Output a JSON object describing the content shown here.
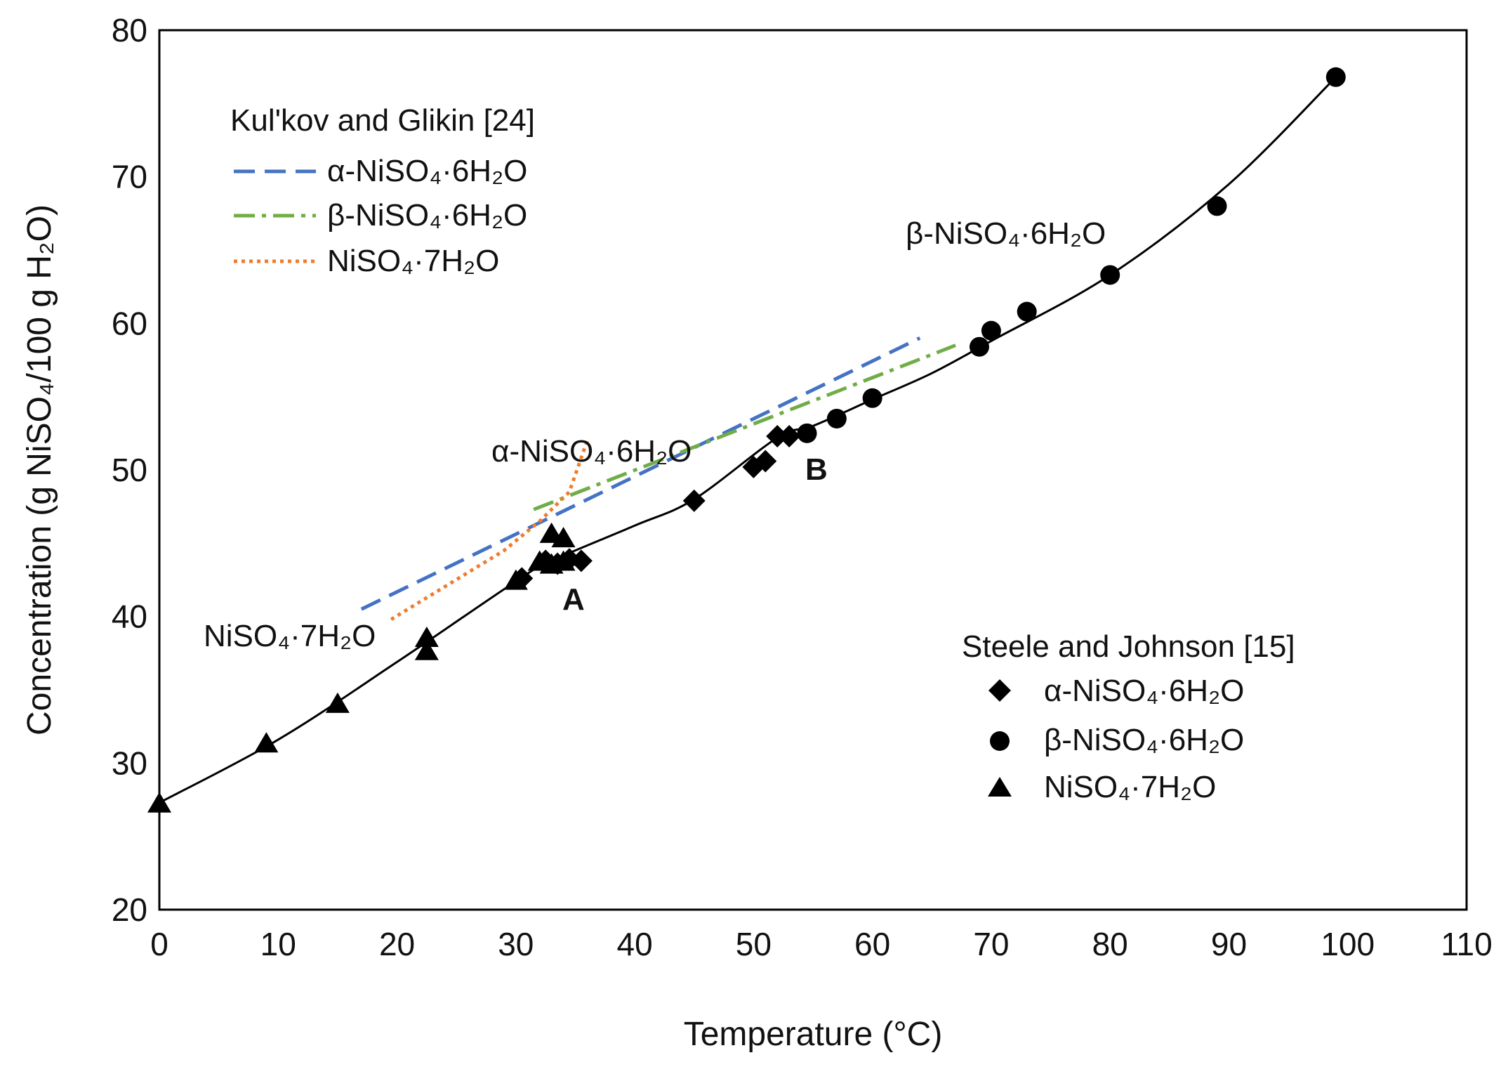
{
  "chart_data": {
    "type": "scatter",
    "xlabel": "Temperature (°C)",
    "ylabel": "Concentration (g NiSO₄/100 g H₂O)",
    "xlim": [
      0,
      110
    ],
    "ylim": [
      20,
      80
    ],
    "xticks": [
      "0",
      "10",
      "20",
      "30",
      "40",
      "50",
      "60",
      "70",
      "80",
      "90",
      "100",
      "110"
    ],
    "yticks": [
      "20",
      "30",
      "40",
      "50",
      "60",
      "70",
      "80"
    ],
    "grid": false,
    "legend_kulkov": {
      "title": "Kul'kov and Glikin [24]",
      "entries": [
        "α-NiSO₄·6H₂O",
        "β-NiSO₄·6H₂O",
        "NiSO₄·7H₂O"
      ]
    },
    "legend_steele": {
      "title": "Steele and Johnson [15]",
      "entries": [
        "α-NiSO₄·6H₂O",
        "β-NiSO₄·6H₂O",
        "NiSO₄·7H₂O"
      ]
    },
    "annotations": {
      "beta_label": "β-NiSO₄·6H₂O",
      "alpha_label": "α-NiSO₄·6H₂O",
      "hepta_label": "NiSO₄·7H₂O",
      "point_a": "A",
      "point_b": "B"
    },
    "colors": {
      "alpha_line": "#4472C4",
      "beta_line": "#70AD47",
      "hepta_line": "#ED7D31",
      "markers": "#000000"
    },
    "steele_series": [
      {
        "name": "α-NiSO₄·6H₂O",
        "marker": "diamond",
        "x": [
          32.5,
          33.5,
          34.5,
          35.5,
          45,
          50,
          51,
          52,
          53,
          30.5
        ],
        "y": [
          43.8,
          43.6,
          43.9,
          43.8,
          47.9,
          50.2,
          50.6,
          52.3,
          52.3,
          42.6
        ]
      },
      {
        "name": "β-NiSO₄·6H₂O",
        "marker": "circle",
        "x": [
          54.5,
          57,
          60,
          69,
          70,
          73,
          80,
          89,
          99
        ],
        "y": [
          52.5,
          53.5,
          54.9,
          58.4,
          59.5,
          60.8,
          63.3,
          68,
          76.8
        ]
      },
      {
        "name": "NiSO₄·7H₂O",
        "marker": "triangle",
        "x": [
          0,
          9,
          15,
          22.5,
          22.5,
          30,
          32,
          33,
          34,
          33,
          34
        ],
        "y": [
          27.2,
          31.3,
          34,
          38.5,
          37.6,
          42.4,
          43.7,
          45.6,
          45.3,
          43.5,
          43.7
        ]
      }
    ],
    "solubility_curve": {
      "x": [
        0,
        10,
        20,
        30,
        33,
        40,
        45,
        52,
        55,
        60,
        65,
        70,
        80,
        90,
        99
      ],
      "y": [
        27.3,
        31.6,
        36.9,
        42.4,
        43.8,
        46.2,
        48,
        52.2,
        53,
        54.8,
        56.6,
        58.8,
        63.3,
        69.5,
        76.8
      ]
    },
    "kulkov_series": [
      {
        "name": "α-NiSO₄·6H₂O",
        "style": "dashed",
        "x": [
          17,
          64
        ],
        "y": [
          40.5,
          59
        ]
      },
      {
        "name": "β-NiSO₄·6H₂O",
        "style": "dashdot",
        "x": [
          31.5,
          67
        ],
        "y": [
          47.3,
          58.5
        ]
      },
      {
        "name": "NiSO₄·7H₂O",
        "style": "dotted",
        "x": [
          19.5,
          29,
          32,
          34.5,
          36
        ],
        "y": [
          39.8,
          44.5,
          46.5,
          48.5,
          52
        ]
      }
    ]
  }
}
